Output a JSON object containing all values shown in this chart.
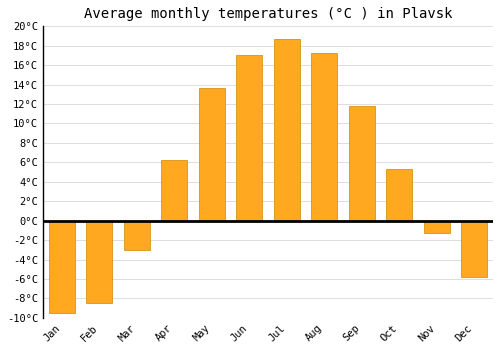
{
  "months": [
    "Jan",
    "Feb",
    "Mar",
    "Apr",
    "May",
    "Jun",
    "Jul",
    "Aug",
    "Sep",
    "Oct",
    "Nov",
    "Dec"
  ],
  "temperatures": [
    -9.5,
    -8.5,
    -3.0,
    6.2,
    13.7,
    17.0,
    18.7,
    17.2,
    11.8,
    5.3,
    -1.3,
    -5.8
  ],
  "bar_color": "#FFA820",
  "bar_edge_color": "#CC8800",
  "title": "Average monthly temperatures (°C ) in Plavsk",
  "ylim": [
    -10,
    20
  ],
  "yticks": [
    -10,
    -8,
    -6,
    -4,
    -2,
    0,
    2,
    4,
    6,
    8,
    10,
    12,
    14,
    16,
    18,
    20
  ],
  "ytick_labels": [
    "-10°C",
    "-8°C",
    "-6°C",
    "-4°C",
    "-2°C",
    "0°C",
    "2°C",
    "4°C",
    "6°C",
    "8°C",
    "10°C",
    "12°C",
    "14°C",
    "16°C",
    "18°C",
    "20°C"
  ],
  "background_color": "#ffffff",
  "grid_color": "#dddddd",
  "title_fontsize": 10,
  "tick_fontsize": 7.5,
  "font_family": "monospace",
  "bar_width": 0.7
}
